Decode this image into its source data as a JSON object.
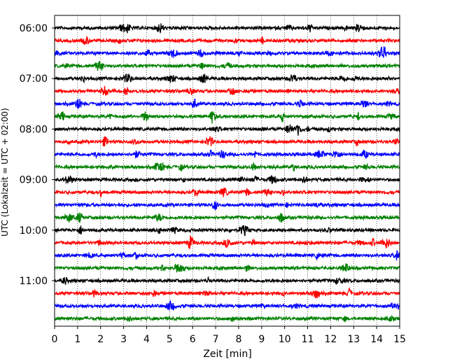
{
  "chart_data": {
    "type": "line",
    "title": "",
    "xlabel": "Zeit  [min]",
    "ylabel": "UTC (Lokalzeit = UTC + 02:00)",
    "xlim": [
      0,
      15
    ],
    "x_ticks": [
      0,
      1,
      2,
      3,
      4,
      5,
      6,
      7,
      8,
      9,
      10,
      11,
      12,
      13,
      14,
      15
    ],
    "y_tick_labels": [
      "06:00",
      "07:00",
      "08:00",
      "09:00",
      "10:00",
      "11:00"
    ],
    "vertical_grid": "dotted",
    "trace_minutes_each": 15,
    "trace_start": "06:00",
    "trace_count": 24,
    "trace_colors": [
      "#000000",
      "#ff0000",
      "#0000ff",
      "#008000"
    ],
    "series": [
      {
        "start": "06:00"
      },
      {
        "start": "06:15"
      },
      {
        "start": "06:30"
      },
      {
        "start": "06:45"
      },
      {
        "start": "07:00"
      },
      {
        "start": "07:15"
      },
      {
        "start": "07:30"
      },
      {
        "start": "07:45"
      },
      {
        "start": "08:00"
      },
      {
        "start": "08:15"
      },
      {
        "start": "08:30"
      },
      {
        "start": "08:45"
      },
      {
        "start": "09:00"
      },
      {
        "start": "09:15"
      },
      {
        "start": "09:30"
      },
      {
        "start": "09:45"
      },
      {
        "start": "10:00"
      },
      {
        "start": "10:15"
      },
      {
        "start": "10:30"
      },
      {
        "start": "10:45"
      },
      {
        "start": "11:00"
      },
      {
        "start": "11:15"
      },
      {
        "start": "11:30"
      },
      {
        "start": "11:45"
      }
    ]
  }
}
